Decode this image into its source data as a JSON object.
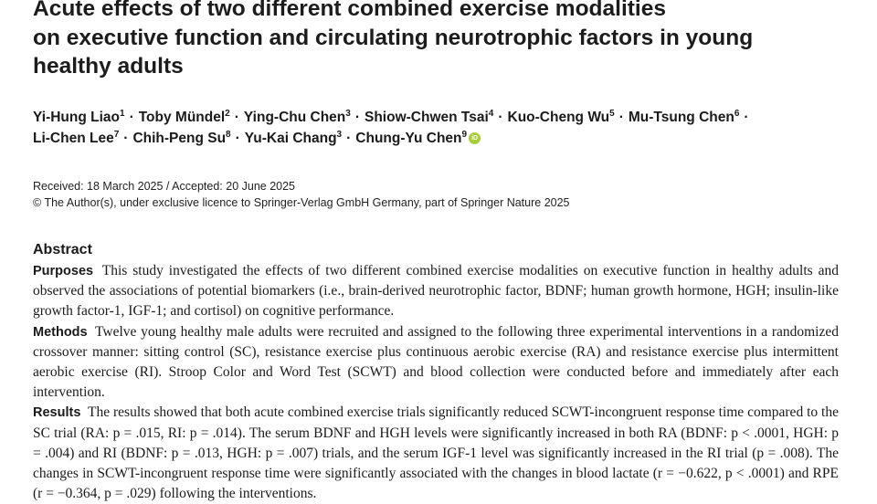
{
  "title_lines": [
    "Acute effects of two different combined exercise modalities",
    "on executive function and circulating neurotrophic factors in young",
    "healthy adults"
  ],
  "authors": [
    {
      "name": "Yi-Hung Liao",
      "aff": "1"
    },
    {
      "name": "Toby Mündel",
      "aff": "2"
    },
    {
      "name": "Ying-Chu Chen",
      "aff": "3"
    },
    {
      "name": "Shiow-Chwen Tsai",
      "aff": "4"
    },
    {
      "name": "Kuo-Cheng Wu",
      "aff": "5"
    },
    {
      "name": "Mu-Tsung Chen",
      "aff": "6"
    },
    {
      "name": "Li-Chen Lee",
      "aff": "7"
    },
    {
      "name": "Chih-Peng Su",
      "aff": "8"
    },
    {
      "name": "Yu-Kai Chang",
      "aff": "3"
    },
    {
      "name": "Chung-Yu Chen",
      "aff": "9"
    }
  ],
  "separator": "·",
  "orcid_label": "iD",
  "dates": "Received: 18 March 2025 / Accepted: 20 June 2025",
  "copyright": "© The Author(s), under exclusive licence to Springer-Verlag GmbH Germany, part of Springer Nature 2025",
  "abstract": {
    "heading": "Abstract",
    "purposes_label": "Purposes",
    "purposes_text": "This study investigated the effects of two different combined exercise modalities on executive function in healthy adults and observed the associations of potential biomarkers (i.e., brain-derived neurotrophic factor, BDNF; human growth hormone, HGH; insulin-like growth factor-1, IGF-1; and cortisol) on cognitive performance.",
    "methods_label": "Methods",
    "methods_text": "Twelve young healthy male adults were recruited and assigned to the following three experimental interventions in a randomized crossover manner: sitting control (SC), resistance exercise plus continuous aerobic exercise (RA) and resistance exercise plus intermittent aerobic exercise (RI). Stroop Color and Word Test (SCWT) and blood collection were conducted before and immediately after each intervention.",
    "results_label": "Results",
    "results_text": "The results showed that both acute combined exercise trials significantly reduced SCWT-incongruent response time compared to the SC trial (RA: p = .015, RI: p = .014). The serum BDNF and HGH levels were significantly increased in both RA (BDNF: p < .0001, HGH: p = .004) and RI (BDNF: p = .013, HGH: p = .007) trials, and the serum IGF-1 level was significantly increased in the RI trial (p = .008). The changes in SCWT-incongruent response time were significantly associated with the changes in blood lactate (r = −0.622, p < .0001) and RPE (r = −0.364, p = .029) following the interventions."
  }
}
